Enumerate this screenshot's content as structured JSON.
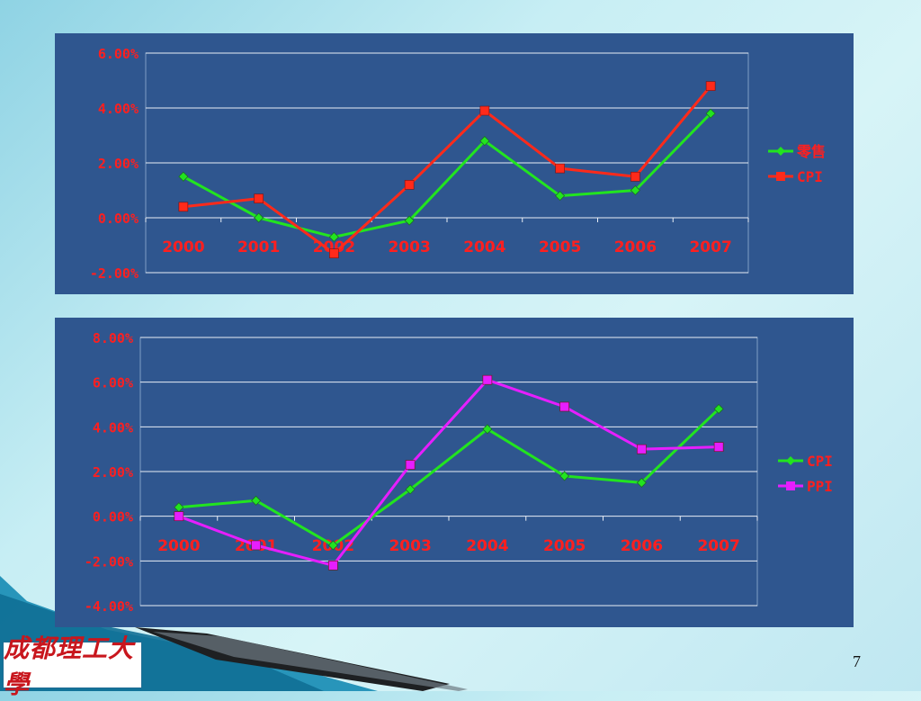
{
  "slide": {
    "page_number": "7",
    "logo_text": "成都理工大學"
  },
  "colors": {
    "panel_bg": "#2f568f",
    "axis_label": "#ff1f1f",
    "retail": "#22e41f",
    "cpi_red": "#ff2a1a",
    "cpi_green": "#22e41f",
    "ppi": "#e61eff",
    "legend_text": "#ff1f1f"
  },
  "chart_data": [
    {
      "type": "line",
      "title": "",
      "xlabel": "",
      "ylabel": "",
      "categories": [
        "2000",
        "2001",
        "2002",
        "2003",
        "2004",
        "2005",
        "2006",
        "2007"
      ],
      "ylim": [
        -2,
        6
      ],
      "y_ticks": [
        "6.00%",
        "4.00%",
        "2.00%",
        "0.00%",
        "-2.00%"
      ],
      "grid": true,
      "legend": "right",
      "series": [
        {
          "name": "零售",
          "marker": "diamond",
          "values": [
            1.5,
            0.0,
            -0.7,
            -0.1,
            2.8,
            0.8,
            1.0,
            3.8
          ]
        },
        {
          "name": "CPI",
          "marker": "square",
          "values": [
            0.4,
            0.7,
            -1.3,
            1.2,
            3.9,
            1.8,
            1.5,
            4.8
          ]
        }
      ]
    },
    {
      "type": "line",
      "title": "",
      "xlabel": "",
      "ylabel": "",
      "categories": [
        "2000",
        "2001",
        "2002",
        "2003",
        "2004",
        "2005",
        "2006",
        "2007"
      ],
      "ylim": [
        -4,
        8
      ],
      "y_ticks": [
        "8.00%",
        "6.00%",
        "4.00%",
        "2.00%",
        "0.00%",
        "-2.00%",
        "-4.00%"
      ],
      "grid": true,
      "legend": "right",
      "series": [
        {
          "name": "CPI",
          "marker": "diamond",
          "values": [
            0.4,
            0.7,
            -1.3,
            1.2,
            3.9,
            1.8,
            1.5,
            4.8
          ]
        },
        {
          "name": "PPI",
          "marker": "square",
          "values": [
            0.0,
            -1.3,
            -2.2,
            2.3,
            6.1,
            4.9,
            3.0,
            3.1
          ]
        }
      ]
    }
  ]
}
